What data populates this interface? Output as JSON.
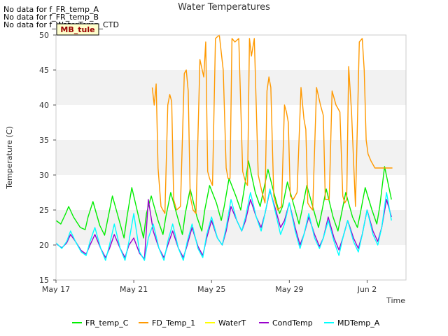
{
  "no_data_messages": [
    "No data for f_FR_temp_A",
    "No data for f_FR_temp_B",
    "No data for f_WaterTemp_CTD"
  ],
  "site_badge": "MB_tule",
  "chart_data": {
    "type": "line",
    "title": "Water Temperatures",
    "xlabel": "Time",
    "ylabel": "Temperature (C)",
    "ylim": [
      15,
      50
    ],
    "yticks": [
      15,
      20,
      25,
      30,
      35,
      40,
      45,
      50
    ],
    "xlim_days": [
      0,
      18.0
    ],
    "xticks": [
      {
        "day": 0,
        "label": "May 17"
      },
      {
        "day": 4,
        "label": "May 21"
      },
      {
        "day": 8,
        "label": "May 25"
      },
      {
        "day": 12,
        "label": "May 29"
      },
      {
        "day": 16,
        "label": "Jun 2"
      }
    ],
    "grid": "horizontal bands",
    "legend_position": "bottom",
    "series": [
      {
        "name": "FR_temp_C",
        "color": "#00ee00",
        "x": [
          0.0,
          0.25,
          0.5,
          0.65,
          0.9,
          1.25,
          1.5,
          1.65,
          1.9,
          2.25,
          2.5,
          2.65,
          2.9,
          3.25,
          3.5,
          3.65,
          3.9,
          4.25,
          4.5,
          4.65,
          4.9,
          5.25,
          5.5,
          5.65,
          5.9,
          6.25,
          6.5,
          6.65,
          6.9,
          7.25,
          7.5,
          7.65,
          7.9,
          8.25,
          8.5,
          8.65,
          8.9,
          9.25,
          9.5,
          9.65,
          9.9,
          10.25,
          10.5,
          10.65,
          10.9,
          11.25,
          11.5,
          11.65,
          11.9,
          12.25,
          12.5,
          12.65,
          12.9,
          13.25,
          13.5,
          13.65,
          13.9,
          14.25,
          14.5,
          14.65,
          14.9,
          15.25,
          15.5,
          15.65,
          15.9,
          16.25,
          16.5,
          16.65,
          16.9,
          17.25
        ],
        "y": [
          23.5,
          23.0,
          24.5,
          25.5,
          24.0,
          22.5,
          22.2,
          24.0,
          26.2,
          22.8,
          21.4,
          23.5,
          27.0,
          23.5,
          21.0,
          24.0,
          28.2,
          24.0,
          21.0,
          24.5,
          27.0,
          23.5,
          21.5,
          24.0,
          27.5,
          24.0,
          21.5,
          24.5,
          28.0,
          24.0,
          22.0,
          25.0,
          28.5,
          26.0,
          23.5,
          25.5,
          29.5,
          27.0,
          25.0,
          27.5,
          32.0,
          27.5,
          25.5,
          27.5,
          30.8,
          27.0,
          24.5,
          25.5,
          29.0,
          25.5,
          23.0,
          25.0,
          28.5,
          25.0,
          22.5,
          24.5,
          28.0,
          24.0,
          22.0,
          24.0,
          27.5,
          24.0,
          22.5,
          24.5,
          28.2,
          25.0,
          23.0,
          25.5,
          31.2,
          26.5
        ]
      },
      {
        "name": "FD_Temp_1",
        "color": "#ff9900",
        "x": [
          4.95,
          5.05,
          5.15,
          5.25,
          5.4,
          5.6,
          5.75,
          5.85,
          5.95,
          6.05,
          6.2,
          6.4,
          6.6,
          6.7,
          6.8,
          6.9,
          7.05,
          7.2,
          7.4,
          7.6,
          7.7,
          7.8,
          7.9,
          8.05,
          8.2,
          8.4,
          8.6,
          8.75,
          8.85,
          8.95,
          9.05,
          9.2,
          9.4,
          9.6,
          9.75,
          9.85,
          9.95,
          10.05,
          10.2,
          10.4,
          10.6,
          10.75,
          10.85,
          10.95,
          11.05,
          11.2,
          11.4,
          11.6,
          11.75,
          11.85,
          11.95,
          12.05,
          12.2,
          12.4,
          12.6,
          12.75,
          12.85,
          12.95,
          13.05,
          13.2,
          13.4,
          13.6,
          13.75,
          13.85,
          13.95,
          14.05,
          14.2,
          14.4,
          14.6,
          14.75,
          14.85,
          14.95,
          15.05,
          15.2,
          15.4,
          15.6,
          15.75,
          15.85,
          15.95,
          16.05,
          16.2,
          16.4,
          16.6,
          16.75,
          16.85,
          16.95,
          17.05,
          17.2,
          17.3
        ],
        "y": [
          42.5,
          40.0,
          43.0,
          31.0,
          25.5,
          24.5,
          40.0,
          41.5,
          40.5,
          26.5,
          25.0,
          25.5,
          44.5,
          45.0,
          42.0,
          27.0,
          25.0,
          24.5,
          46.5,
          44.0,
          49.0,
          30.5,
          29.5,
          28.5,
          49.5,
          50.0,
          45.0,
          31.0,
          29.5,
          29.5,
          49.5,
          49.0,
          49.5,
          30.5,
          29.0,
          28.5,
          49.5,
          47.0,
          49.5,
          30.0,
          27.5,
          26.0,
          42.0,
          44.0,
          42.5,
          27.0,
          25.0,
          25.5,
          40.0,
          39.0,
          37.5,
          27.0,
          26.5,
          27.5,
          42.5,
          38.0,
          36.5,
          26.0,
          25.5,
          25.0,
          42.5,
          40.0,
          38.5,
          26.5,
          26.5,
          26.5,
          42.0,
          40.0,
          39.0,
          27.0,
          26.0,
          26.5,
          45.5,
          39.0,
          25.5,
          49.0,
          49.5,
          45.0,
          35.0,
          33.0,
          32.0,
          31.0,
          31.0,
          31.0,
          31.0,
          31.0,
          31.0,
          31.0,
          31.0
        ]
      },
      {
        "name": "WaterT",
        "color": "#ffff00",
        "x": [],
        "y": []
      },
      {
        "name": "CondTemp",
        "color": "#9900cc",
        "x": [
          0.0,
          0.3,
          0.55,
          0.75,
          1.0,
          1.3,
          1.55,
          1.75,
          2.0,
          2.3,
          2.55,
          2.75,
          3.0,
          3.3,
          3.55,
          3.75,
          4.0,
          4.3,
          4.55,
          4.75,
          5.0,
          5.3,
          5.55,
          5.75,
          6.0,
          6.3,
          6.55,
          6.75,
          7.0,
          7.3,
          7.55,
          7.75,
          8.0,
          8.3,
          8.55,
          8.75,
          9.0,
          9.3,
          9.55,
          9.75,
          10.0,
          10.3,
          10.55,
          10.75,
          11.0,
          11.3,
          11.55,
          11.75,
          12.0,
          12.3,
          12.55,
          12.75,
          13.0,
          13.3,
          13.55,
          13.75,
          14.0,
          14.3,
          14.55,
          14.75,
          15.0,
          15.3,
          15.55,
          15.75,
          16.0,
          16.3,
          16.55,
          16.75,
          17.0,
          17.25
        ],
        "y": [
          20.2,
          19.6,
          20.3,
          21.5,
          20.5,
          19.2,
          18.7,
          20.0,
          21.5,
          19.5,
          18.2,
          19.5,
          21.5,
          19.5,
          18.2,
          20.0,
          21.0,
          18.8,
          18.0,
          26.5,
          22.0,
          19.5,
          18.2,
          20.0,
          22.0,
          19.5,
          18.2,
          20.0,
          22.5,
          19.8,
          18.5,
          21.0,
          23.5,
          21.0,
          20.0,
          22.0,
          25.5,
          23.5,
          22.0,
          23.5,
          26.5,
          24.0,
          22.5,
          24.5,
          27.8,
          25.0,
          22.5,
          23.5,
          26.0,
          22.5,
          20.0,
          21.5,
          24.0,
          21.5,
          19.8,
          21.0,
          24.0,
          21.0,
          19.3,
          21.0,
          23.5,
          21.0,
          19.5,
          21.5,
          25.0,
          22.0,
          20.5,
          22.5,
          26.5,
          24.0
        ]
      },
      {
        "name": "MDTemp_A",
        "color": "#00ffff",
        "x": [
          0.0,
          0.3,
          0.55,
          0.75,
          1.0,
          1.3,
          1.55,
          1.75,
          2.0,
          2.3,
          2.55,
          2.75,
          3.0,
          3.3,
          3.55,
          3.75,
          4.0,
          4.3,
          4.55,
          4.75,
          5.0,
          5.3,
          5.55,
          5.75,
          6.0,
          6.3,
          6.55,
          6.75,
          7.0,
          7.3,
          7.55,
          7.75,
          8.0,
          8.3,
          8.55,
          8.75,
          9.0,
          9.3,
          9.55,
          9.75,
          10.0,
          10.3,
          10.55,
          10.75,
          11.0,
          11.3,
          11.55,
          11.75,
          12.0,
          12.3,
          12.55,
          12.75,
          13.0,
          13.3,
          13.55,
          13.75,
          14.0,
          14.3,
          14.55,
          14.75,
          15.0,
          15.3,
          15.55,
          15.75,
          16.0,
          16.3,
          16.55,
          16.75,
          17.0,
          17.25
        ],
        "y": [
          20.3,
          19.5,
          20.5,
          22.0,
          20.5,
          19.0,
          18.5,
          20.5,
          22.5,
          19.5,
          17.8,
          20.0,
          23.0,
          19.5,
          17.8,
          20.5,
          24.5,
          19.0,
          17.8,
          21.0,
          23.0,
          19.5,
          17.8,
          20.5,
          23.0,
          19.5,
          17.8,
          20.5,
          23.0,
          19.5,
          18.2,
          21.5,
          24.0,
          21.0,
          20.0,
          22.5,
          26.5,
          23.5,
          22.0,
          24.0,
          27.5,
          24.0,
          22.0,
          24.5,
          28.0,
          24.5,
          21.5,
          23.0,
          26.0,
          22.0,
          19.5,
          21.5,
          24.5,
          21.0,
          19.5,
          21.0,
          23.5,
          20.5,
          18.5,
          21.0,
          23.5,
          20.5,
          19.0,
          21.5,
          25.0,
          21.5,
          20.0,
          22.5,
          27.5,
          23.5
        ]
      }
    ]
  }
}
